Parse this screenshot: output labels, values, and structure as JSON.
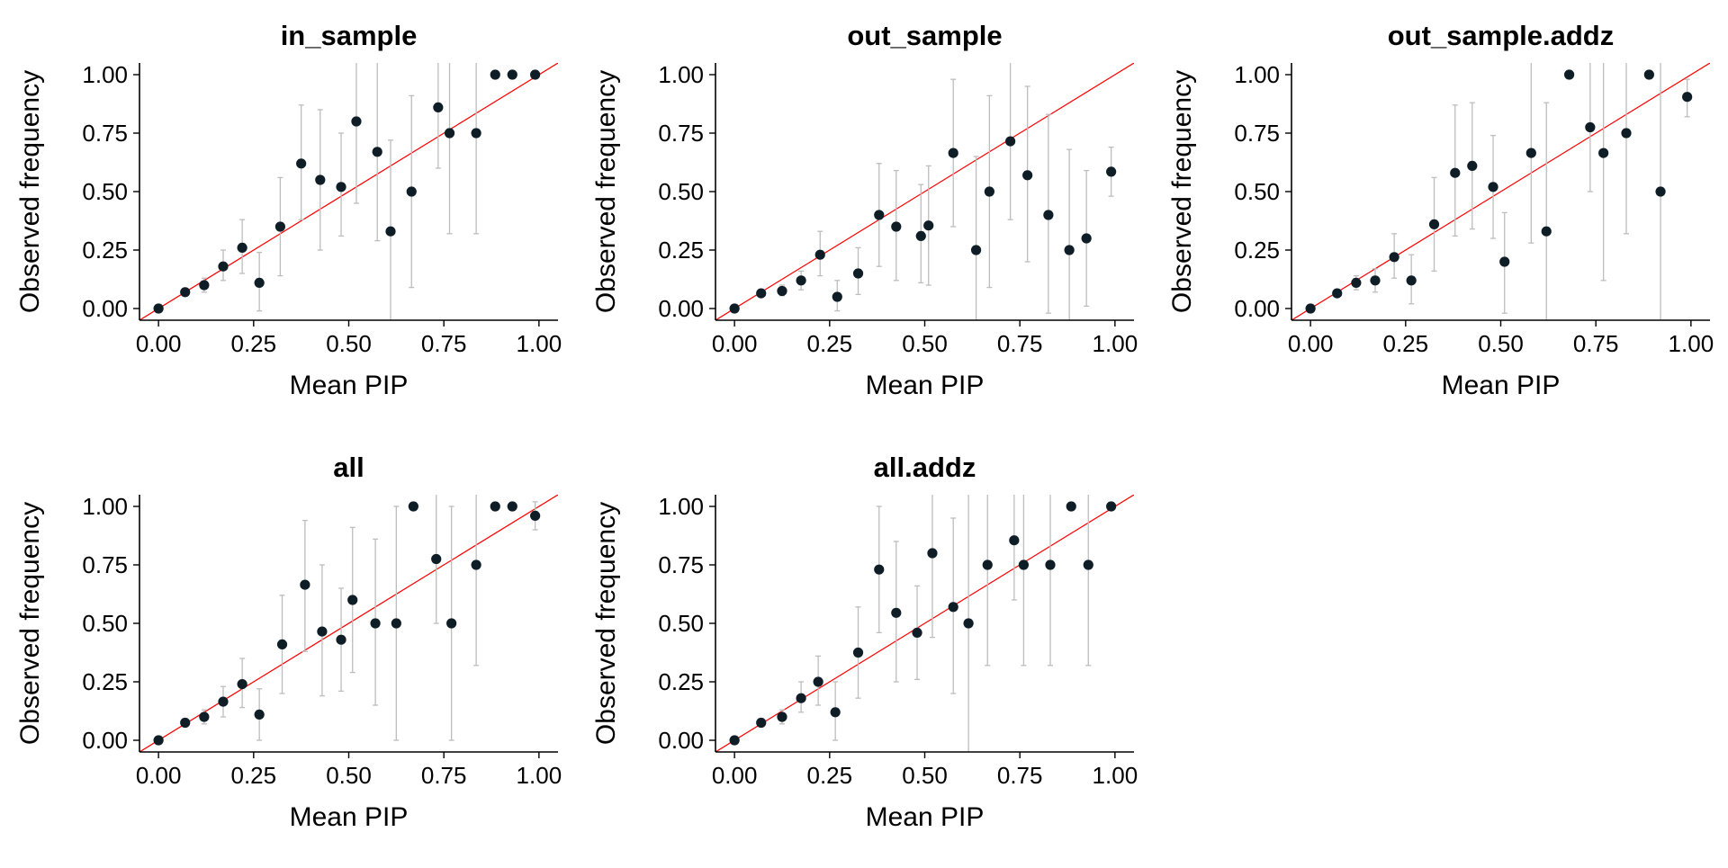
{
  "figure": {
    "background": "#ffffff",
    "point_color": "#0f1e26",
    "errorbar_color": "#bdbdbd",
    "reference_line_color": "#ff0000",
    "axis_color": "#000000"
  },
  "chart_data": [
    {
      "type": "scatter",
      "title": "in_sample",
      "xlabel": "Mean PIP",
      "ylabel": "Observed frequency",
      "xlim": [
        -0.05,
        1.05
      ],
      "ylim": [
        -0.05,
        1.05
      ],
      "xticks": [
        "0.00",
        "0.25",
        "0.50",
        "0.75",
        "1.00"
      ],
      "yticks": [
        "0.00",
        "0.25",
        "0.50",
        "0.75",
        "1.00"
      ],
      "reference_line": "y = x",
      "grid": false,
      "points": [
        {
          "x": 0.0,
          "y": 0.0,
          "lo": 0.0,
          "hi": 0.0
        },
        {
          "x": 0.07,
          "y": 0.07,
          "lo": 0.06,
          "hi": 0.08
        },
        {
          "x": 0.12,
          "y": 0.1,
          "lo": 0.07,
          "hi": 0.13
        },
        {
          "x": 0.17,
          "y": 0.18,
          "lo": 0.12,
          "hi": 0.25
        },
        {
          "x": 0.22,
          "y": 0.26,
          "lo": 0.15,
          "hi": 0.38
        },
        {
          "x": 0.265,
          "y": 0.11,
          "lo": -0.01,
          "hi": 0.24
        },
        {
          "x": 0.32,
          "y": 0.35,
          "lo": 0.14,
          "hi": 0.56
        },
        {
          "x": 0.375,
          "y": 0.62,
          "lo": 0.38,
          "hi": 0.87
        },
        {
          "x": 0.425,
          "y": 0.55,
          "lo": 0.25,
          "hi": 0.85
        },
        {
          "x": 0.48,
          "y": 0.52,
          "lo": 0.31,
          "hi": 0.75
        },
        {
          "x": 0.52,
          "y": 0.8,
          "lo": 0.45,
          "hi": 1.05
        },
        {
          "x": 0.575,
          "y": 0.67,
          "lo": 0.29,
          "hi": 1.05
        },
        {
          "x": 0.61,
          "y": 0.33,
          "lo": -0.05,
          "hi": 0.72
        },
        {
          "x": 0.665,
          "y": 0.5,
          "lo": 0.09,
          "hi": 0.91
        },
        {
          "x": 0.735,
          "y": 0.86,
          "lo": 0.6,
          "hi": 1.05
        },
        {
          "x": 0.765,
          "y": 0.75,
          "lo": 0.32,
          "hi": 1.05
        },
        {
          "x": 0.835,
          "y": 0.75,
          "lo": 0.32,
          "hi": 1.05
        },
        {
          "x": 0.885,
          "y": 1.0,
          "lo": 1.0,
          "hi": 1.0
        },
        {
          "x": 0.93,
          "y": 1.0,
          "lo": 1.0,
          "hi": 1.0
        },
        {
          "x": 0.99,
          "y": 1.0,
          "lo": 1.0,
          "hi": 1.0
        }
      ]
    },
    {
      "type": "scatter",
      "title": "out_sample",
      "xlabel": "Mean PIP",
      "ylabel": "Observed frequency",
      "xlim": [
        -0.05,
        1.05
      ],
      "ylim": [
        -0.05,
        1.05
      ],
      "xticks": [
        "0.00",
        "0.25",
        "0.50",
        "0.75",
        "1.00"
      ],
      "yticks": [
        "0.00",
        "0.25",
        "0.50",
        "0.75",
        "1.00"
      ],
      "reference_line": "y = x",
      "grid": false,
      "points": [
        {
          "x": 0.0,
          "y": 0.0,
          "lo": 0.0,
          "hi": 0.0
        },
        {
          "x": 0.07,
          "y": 0.065,
          "lo": 0.055,
          "hi": 0.075
        },
        {
          "x": 0.125,
          "y": 0.075,
          "lo": 0.055,
          "hi": 0.1
        },
        {
          "x": 0.175,
          "y": 0.12,
          "lo": 0.08,
          "hi": 0.16
        },
        {
          "x": 0.225,
          "y": 0.23,
          "lo": 0.14,
          "hi": 0.33
        },
        {
          "x": 0.27,
          "y": 0.05,
          "lo": -0.01,
          "hi": 0.12
        },
        {
          "x": 0.325,
          "y": 0.15,
          "lo": 0.06,
          "hi": 0.26
        },
        {
          "x": 0.38,
          "y": 0.4,
          "lo": 0.18,
          "hi": 0.62
        },
        {
          "x": 0.425,
          "y": 0.35,
          "lo": 0.12,
          "hi": 0.59
        },
        {
          "x": 0.49,
          "y": 0.31,
          "lo": 0.11,
          "hi": 0.53
        },
        {
          "x": 0.51,
          "y": 0.355,
          "lo": 0.1,
          "hi": 0.61
        },
        {
          "x": 0.575,
          "y": 0.665,
          "lo": 0.35,
          "hi": 0.98
        },
        {
          "x": 0.635,
          "y": 0.25,
          "lo": -0.05,
          "hi": 0.65
        },
        {
          "x": 0.67,
          "y": 0.5,
          "lo": 0.09,
          "hi": 0.91
        },
        {
          "x": 0.725,
          "y": 0.715,
          "lo": 0.38,
          "hi": 1.05
        },
        {
          "x": 0.77,
          "y": 0.57,
          "lo": 0.2,
          "hi": 0.95
        },
        {
          "x": 0.825,
          "y": 0.4,
          "lo": -0.02,
          "hi": 0.83
        },
        {
          "x": 0.88,
          "y": 0.25,
          "lo": -0.05,
          "hi": 0.68
        },
        {
          "x": 0.925,
          "y": 0.3,
          "lo": 0.01,
          "hi": 0.59
        },
        {
          "x": 0.99,
          "y": 0.585,
          "lo": 0.48,
          "hi": 0.69
        }
      ]
    },
    {
      "type": "scatter",
      "title": "out_sample.addz",
      "xlabel": "Mean PIP",
      "ylabel": "Observed frequency",
      "xlim": [
        -0.05,
        1.05
      ],
      "ylim": [
        -0.05,
        1.05
      ],
      "xticks": [
        "0.00",
        "0.25",
        "0.50",
        "0.75",
        "1.00"
      ],
      "yticks": [
        "0.00",
        "0.25",
        "0.50",
        "0.75",
        "1.00"
      ],
      "reference_line": "y = x",
      "grid": false,
      "points": [
        {
          "x": 0.0,
          "y": 0.0,
          "lo": 0.0,
          "hi": 0.0
        },
        {
          "x": 0.07,
          "y": 0.065,
          "lo": 0.055,
          "hi": 0.075
        },
        {
          "x": 0.12,
          "y": 0.11,
          "lo": 0.08,
          "hi": 0.14
        },
        {
          "x": 0.17,
          "y": 0.12,
          "lo": 0.07,
          "hi": 0.17
        },
        {
          "x": 0.22,
          "y": 0.22,
          "lo": 0.13,
          "hi": 0.32
        },
        {
          "x": 0.265,
          "y": 0.12,
          "lo": 0.02,
          "hi": 0.23
        },
        {
          "x": 0.325,
          "y": 0.36,
          "lo": 0.16,
          "hi": 0.56
        },
        {
          "x": 0.38,
          "y": 0.58,
          "lo": 0.31,
          "hi": 0.87
        },
        {
          "x": 0.425,
          "y": 0.61,
          "lo": 0.34,
          "hi": 0.88
        },
        {
          "x": 0.48,
          "y": 0.52,
          "lo": 0.3,
          "hi": 0.74
        },
        {
          "x": 0.51,
          "y": 0.2,
          "lo": -0.02,
          "hi": 0.41
        },
        {
          "x": 0.58,
          "y": 0.665,
          "lo": 0.28,
          "hi": 1.05
        },
        {
          "x": 0.62,
          "y": 0.33,
          "lo": -0.05,
          "hi": 0.88
        },
        {
          "x": 0.68,
          "y": 1.0,
          "lo": 1.0,
          "hi": 1.0
        },
        {
          "x": 0.735,
          "y": 0.775,
          "lo": 0.5,
          "hi": 1.05
        },
        {
          "x": 0.77,
          "y": 0.665,
          "lo": 0.12,
          "hi": 1.05
        },
        {
          "x": 0.83,
          "y": 0.75,
          "lo": 0.32,
          "hi": 1.05
        },
        {
          "x": 0.89,
          "y": 1.0,
          "lo": 1.0,
          "hi": 1.0
        },
        {
          "x": 0.92,
          "y": 0.5,
          "lo": -0.05,
          "hi": 1.05
        },
        {
          "x": 0.99,
          "y": 0.905,
          "lo": 0.82,
          "hi": 0.98
        }
      ]
    },
    {
      "type": "scatter",
      "title": "all",
      "xlabel": "Mean PIP",
      "ylabel": "Observed frequency",
      "xlim": [
        -0.05,
        1.05
      ],
      "ylim": [
        -0.05,
        1.05
      ],
      "xticks": [
        "0.00",
        "0.25",
        "0.50",
        "0.75",
        "1.00"
      ],
      "yticks": [
        "0.00",
        "0.25",
        "0.50",
        "0.75",
        "1.00"
      ],
      "reference_line": "y = x",
      "grid": false,
      "points": [
        {
          "x": 0.0,
          "y": 0.0,
          "lo": 0.0,
          "hi": 0.0
        },
        {
          "x": 0.07,
          "y": 0.075,
          "lo": 0.06,
          "hi": 0.09
        },
        {
          "x": 0.12,
          "y": 0.1,
          "lo": 0.07,
          "hi": 0.13
        },
        {
          "x": 0.17,
          "y": 0.165,
          "lo": 0.1,
          "hi": 0.23
        },
        {
          "x": 0.22,
          "y": 0.24,
          "lo": 0.14,
          "hi": 0.35
        },
        {
          "x": 0.265,
          "y": 0.11,
          "lo": 0.0,
          "hi": 0.22
        },
        {
          "x": 0.325,
          "y": 0.41,
          "lo": 0.2,
          "hi": 0.62
        },
        {
          "x": 0.385,
          "y": 0.665,
          "lo": 0.38,
          "hi": 0.94
        },
        {
          "x": 0.43,
          "y": 0.465,
          "lo": 0.19,
          "hi": 0.75
        },
        {
          "x": 0.48,
          "y": 0.43,
          "lo": 0.21,
          "hi": 0.65
        },
        {
          "x": 0.51,
          "y": 0.6,
          "lo": 0.29,
          "hi": 0.91
        },
        {
          "x": 0.57,
          "y": 0.5,
          "lo": 0.15,
          "hi": 0.86
        },
        {
          "x": 0.625,
          "y": 0.5,
          "lo": 0.0,
          "hi": 1.0
        },
        {
          "x": 0.67,
          "y": 1.0,
          "lo": 1.0,
          "hi": 1.0
        },
        {
          "x": 0.73,
          "y": 0.775,
          "lo": 0.5,
          "hi": 1.05
        },
        {
          "x": 0.77,
          "y": 0.5,
          "lo": 0.0,
          "hi": 1.0
        },
        {
          "x": 0.835,
          "y": 0.75,
          "lo": 0.32,
          "hi": 1.05
        },
        {
          "x": 0.885,
          "y": 1.0,
          "lo": 1.0,
          "hi": 1.0
        },
        {
          "x": 0.93,
          "y": 1.0,
          "lo": 1.0,
          "hi": 1.0
        },
        {
          "x": 0.99,
          "y": 0.96,
          "lo": 0.9,
          "hi": 1.02
        }
      ]
    },
    {
      "type": "scatter",
      "title": "all.addz",
      "xlabel": "Mean PIP",
      "ylabel": "Observed frequency",
      "xlim": [
        -0.05,
        1.05
      ],
      "ylim": [
        -0.05,
        1.05
      ],
      "xticks": [
        "0.00",
        "0.25",
        "0.50",
        "0.75",
        "1.00"
      ],
      "yticks": [
        "0.00",
        "0.25",
        "0.50",
        "0.75",
        "1.00"
      ],
      "reference_line": "y = x",
      "grid": false,
      "points": [
        {
          "x": 0.0,
          "y": 0.0,
          "lo": 0.0,
          "hi": 0.0
        },
        {
          "x": 0.07,
          "y": 0.075,
          "lo": 0.06,
          "hi": 0.09
        },
        {
          "x": 0.125,
          "y": 0.1,
          "lo": 0.07,
          "hi": 0.13
        },
        {
          "x": 0.175,
          "y": 0.18,
          "lo": 0.12,
          "hi": 0.25
        },
        {
          "x": 0.22,
          "y": 0.25,
          "lo": 0.15,
          "hi": 0.36
        },
        {
          "x": 0.265,
          "y": 0.12,
          "lo": 0.0,
          "hi": 0.25
        },
        {
          "x": 0.325,
          "y": 0.375,
          "lo": 0.18,
          "hi": 0.57
        },
        {
          "x": 0.38,
          "y": 0.73,
          "lo": 0.46,
          "hi": 1.0
        },
        {
          "x": 0.425,
          "y": 0.545,
          "lo": 0.25,
          "hi": 0.85
        },
        {
          "x": 0.48,
          "y": 0.46,
          "lo": 0.26,
          "hi": 0.66
        },
        {
          "x": 0.52,
          "y": 0.8,
          "lo": 0.44,
          "hi": 1.05
        },
        {
          "x": 0.575,
          "y": 0.57,
          "lo": 0.2,
          "hi": 0.95
        },
        {
          "x": 0.615,
          "y": 0.5,
          "lo": -0.05,
          "hi": 1.05
        },
        {
          "x": 0.665,
          "y": 0.75,
          "lo": 0.32,
          "hi": 1.05
        },
        {
          "x": 0.735,
          "y": 0.855,
          "lo": 0.6,
          "hi": 1.05
        },
        {
          "x": 0.76,
          "y": 0.75,
          "lo": 0.32,
          "hi": 1.05
        },
        {
          "x": 0.83,
          "y": 0.75,
          "lo": 0.32,
          "hi": 1.05
        },
        {
          "x": 0.885,
          "y": 1.0,
          "lo": 1.0,
          "hi": 1.0
        },
        {
          "x": 0.93,
          "y": 0.75,
          "lo": 0.32,
          "hi": 1.05
        },
        {
          "x": 0.99,
          "y": 1.0,
          "lo": 1.0,
          "hi": 1.0
        }
      ]
    }
  ]
}
